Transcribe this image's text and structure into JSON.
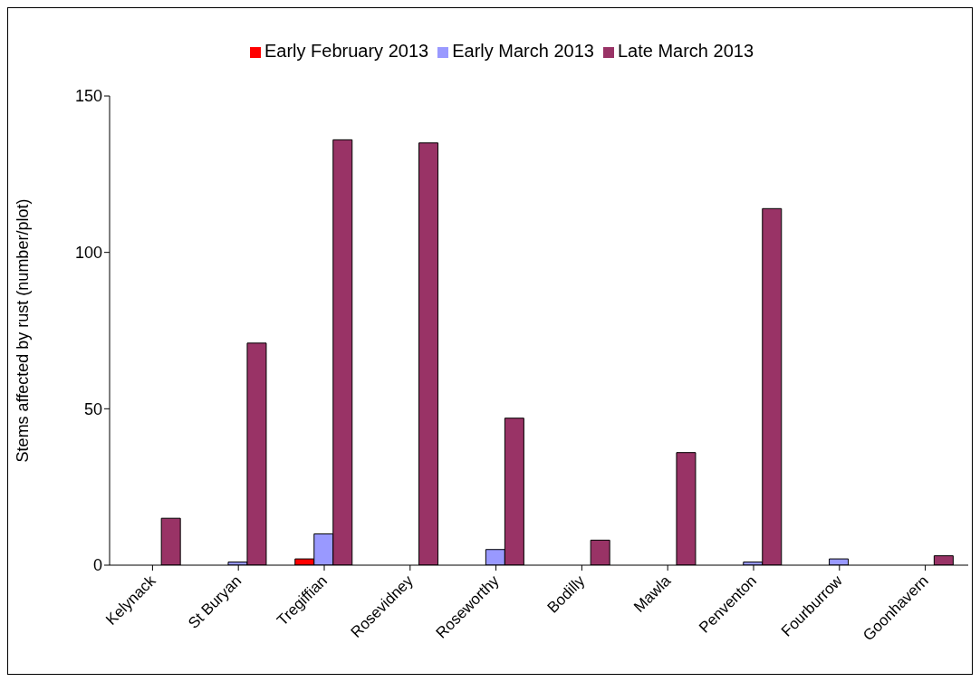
{
  "chart_data": {
    "type": "bar",
    "ylabel": "Stems affected by rust (number/plot)",
    "categories": [
      "Kelynack",
      "St Buryan",
      "Tregiffian",
      "Rosevidney",
      "Roseworthy",
      "Bodilly",
      "Mawla",
      "Penventon",
      "Fourburrow",
      "Goonhavern"
    ],
    "series": [
      {
        "name": "Early February 2013",
        "color": "#ff0000",
        "values": [
          0,
          0,
          2,
          0,
          0,
          0,
          0,
          0,
          0,
          0
        ]
      },
      {
        "name": "Early March 2013",
        "color": "#9999ff",
        "values": [
          0,
          1,
          10,
          0,
          5,
          0,
          0,
          1,
          2,
          0
        ]
      },
      {
        "name": "Late March 2013",
        "color": "#993366",
        "values": [
          15,
          71,
          136,
          135,
          47,
          8,
          36,
          114,
          0,
          3
        ]
      }
    ],
    "ylim": [
      0,
      150
    ],
    "yticks": [
      0,
      50,
      100,
      150
    ],
    "legend": "top"
  }
}
